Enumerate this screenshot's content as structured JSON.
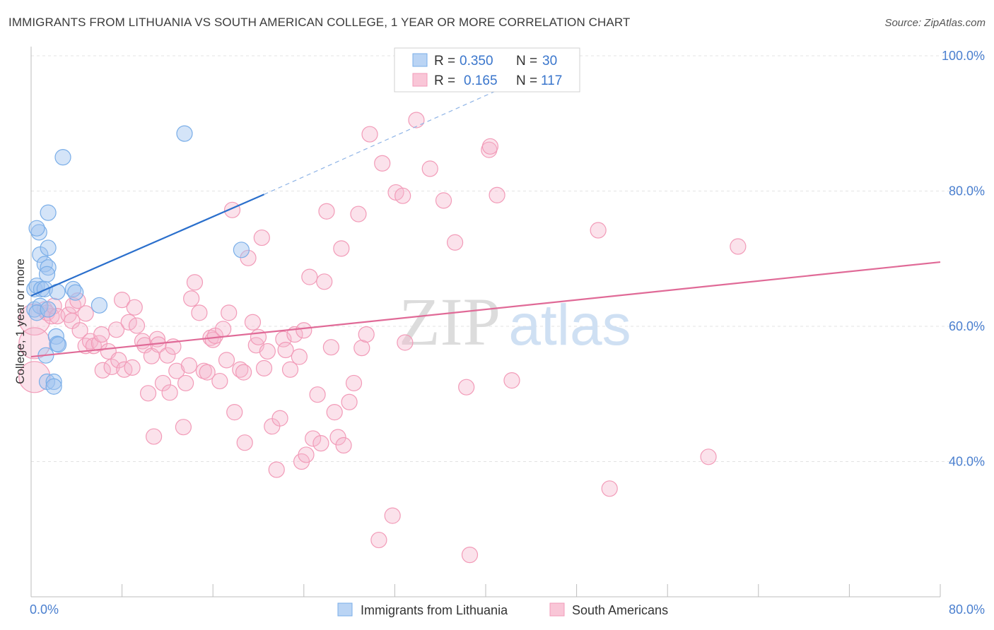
{
  "title": "IMMIGRANTS FROM LITHUANIA VS SOUTH AMERICAN COLLEGE, 1 YEAR OR MORE CORRELATION CHART",
  "source": "Source: ZipAtlas.com",
  "watermark": {
    "zip": "ZIP",
    "atlas": "atlas"
  },
  "legend": {
    "series1": {
      "r_label": "R =",
      "r_value": "0.350",
      "n_label": "N =",
      "n_value": "30"
    },
    "series2": {
      "r_label": "R =",
      "r_value": "0.165",
      "n_label": "N =",
      "n_value": "117"
    }
  },
  "chart_data": {
    "type": "scatter",
    "title": "IMMIGRANTS FROM LITHUANIA VS SOUTH AMERICAN COLLEGE, 1 YEAR OR MORE CORRELATION CHART",
    "xlabel": "",
    "ylabel": "College, 1 year or more",
    "xlim": [
      0,
      80
    ],
    "ylim": [
      20,
      100
    ],
    "x_tick_labels": [
      "0.0%",
      "80.0%"
    ],
    "y_tick_labels": [
      "100.0%",
      "80.0%",
      "60.0%",
      "40.0%"
    ],
    "y_ticks": [
      100,
      80,
      60,
      40
    ],
    "grid": true,
    "legend_position": "top-center",
    "series": [
      {
        "name": "Immigrants from Lithuania",
        "color": "#7aaee8",
        "trend_color": "#2a6fcc",
        "trend": {
          "x0": 0,
          "y0": 64.5,
          "x1": 20.5,
          "y1": 79.5,
          "dash_to_x": 44.5,
          "dash_to_y": 97.5
        },
        "points": [
          [
            0.3,
            65.5
          ],
          [
            0.5,
            66
          ],
          [
            0.3,
            62.5
          ],
          [
            0.8,
            63
          ],
          [
            0.5,
            62
          ],
          [
            0.9,
            65.5
          ],
          [
            1.2,
            65.5
          ],
          [
            0.7,
            73.9
          ],
          [
            0.5,
            74.5
          ],
          [
            0.8,
            70.6
          ],
          [
            1.2,
            69.2
          ],
          [
            1.5,
            68.7
          ],
          [
            1.4,
            67.7
          ],
          [
            1.5,
            71.6
          ],
          [
            1.5,
            76.8
          ],
          [
            2.8,
            85
          ],
          [
            2.3,
            65.1
          ],
          [
            3.7,
            65.5
          ],
          [
            3.9,
            65
          ],
          [
            6,
            63.1
          ],
          [
            1.3,
            55.7
          ],
          [
            2.2,
            58.5
          ],
          [
            2.3,
            57.4
          ],
          [
            2.4,
            57.3
          ],
          [
            1.4,
            51.8
          ],
          [
            2,
            51.8
          ],
          [
            2,
            51.1
          ],
          [
            13.5,
            88.5
          ],
          [
            18.5,
            71.3
          ],
          [
            1.5,
            62.5
          ]
        ],
        "sizes": [
          11,
          11,
          11,
          11,
          11,
          11,
          11,
          11,
          11,
          11,
          11,
          11,
          11,
          11,
          11,
          11,
          11,
          11,
          11,
          11,
          11,
          11,
          11,
          11,
          11,
          11,
          11,
          11,
          11,
          11
        ]
      },
      {
        "name": "South Americans",
        "color": "#f29bb8",
        "trend_color": "#e06a97",
        "trend": {
          "x0": 0,
          "y0": 55.5,
          "x1": 80,
          "y1": 69.5
        },
        "points": [
          [
            0.3,
            61
          ],
          [
            0.3,
            57.5
          ],
          [
            0.3,
            52.5
          ],
          [
            1.2,
            62.5
          ],
          [
            1.4,
            62
          ],
          [
            1.8,
            61.5
          ],
          [
            2,
            63
          ],
          [
            2.3,
            61.5
          ],
          [
            3.3,
            61.7
          ],
          [
            3.7,
            63.1
          ],
          [
            3.6,
            60.8
          ],
          [
            4.1,
            63.8
          ],
          [
            4.8,
            61.9
          ],
          [
            4.3,
            59.4
          ],
          [
            4.8,
            57.1
          ],
          [
            5.2,
            57.8
          ],
          [
            5.5,
            57.1
          ],
          [
            6,
            57.5
          ],
          [
            6.2,
            58.8
          ],
          [
            6.3,
            53.5
          ],
          [
            6.8,
            56.3
          ],
          [
            7.1,
            54
          ],
          [
            7.5,
            59.5
          ],
          [
            7.7,
            55
          ],
          [
            8,
            63.9
          ],
          [
            8.2,
            53.6
          ],
          [
            8.6,
            60.6
          ],
          [
            8.9,
            53.9
          ],
          [
            9.1,
            62.8
          ],
          [
            9.3,
            60.1
          ],
          [
            9.8,
            57.8
          ],
          [
            10,
            57.2
          ],
          [
            10.3,
            50.1
          ],
          [
            10.6,
            55.6
          ],
          [
            10.8,
            43.7
          ],
          [
            11.1,
            58.1
          ],
          [
            11.2,
            57.3
          ],
          [
            11.6,
            51.6
          ],
          [
            12,
            55.7
          ],
          [
            12.2,
            50.2
          ],
          [
            12.5,
            57
          ],
          [
            12.8,
            53.4
          ],
          [
            13.4,
            45.1
          ],
          [
            13.6,
            51.6
          ],
          [
            13.9,
            54.2
          ],
          [
            14.1,
            64.1
          ],
          [
            14.4,
            66.5
          ],
          [
            14.8,
            62
          ],
          [
            15.2,
            53.4
          ],
          [
            15.5,
            53.2
          ],
          [
            15.8,
            58.3
          ],
          [
            16,
            58
          ],
          [
            16.2,
            58.6
          ],
          [
            16.6,
            51.9
          ],
          [
            16.9,
            59.6
          ],
          [
            17.2,
            55
          ],
          [
            17.4,
            62
          ],
          [
            17.7,
            77.2
          ],
          [
            17.9,
            47.3
          ],
          [
            18.4,
            53.6
          ],
          [
            18.7,
            53.2
          ],
          [
            18.8,
            42.8
          ],
          [
            19.1,
            70.1
          ],
          [
            19.5,
            60.6
          ],
          [
            19.8,
            57.2
          ],
          [
            20,
            58.4
          ],
          [
            20.3,
            73.1
          ],
          [
            20.5,
            53.8
          ],
          [
            20.8,
            56.3
          ],
          [
            21.2,
            45.2
          ],
          [
            21.6,
            38.8
          ],
          [
            21.9,
            46.4
          ],
          [
            22.2,
            58.1
          ],
          [
            22.4,
            56.5
          ],
          [
            22.8,
            53.6
          ],
          [
            23.2,
            58.8
          ],
          [
            23.6,
            55.5
          ],
          [
            23.8,
            40
          ],
          [
            24,
            59.4
          ],
          [
            24.2,
            41
          ],
          [
            24.5,
            67.3
          ],
          [
            24.8,
            43.4
          ],
          [
            25.2,
            49.9
          ],
          [
            25.5,
            42.7
          ],
          [
            25.8,
            66.6
          ],
          [
            26,
            77
          ],
          [
            26.4,
            56.9
          ],
          [
            26.7,
            47.3
          ],
          [
            27,
            43.6
          ],
          [
            27.3,
            71.5
          ],
          [
            27.5,
            42.4
          ],
          [
            28,
            48.8
          ],
          [
            28.4,
            51.6
          ],
          [
            28.8,
            76.6
          ],
          [
            29.1,
            56.8
          ],
          [
            29.5,
            58.8
          ],
          [
            29.8,
            88.4
          ],
          [
            30.6,
            28.4
          ],
          [
            30.9,
            84.1
          ],
          [
            31.8,
            32
          ],
          [
            32.1,
            79.8
          ],
          [
            32.7,
            79.3
          ],
          [
            32.9,
            57.6
          ],
          [
            33.9,
            90.5
          ],
          [
            35.1,
            83.3
          ],
          [
            36.3,
            78.6
          ],
          [
            37.3,
            72.4
          ],
          [
            38.3,
            51
          ],
          [
            38.6,
            26.2
          ],
          [
            40.3,
            86.1
          ],
          [
            40.4,
            86.6
          ],
          [
            41,
            79.4
          ],
          [
            42.3,
            52
          ],
          [
            49.9,
            74.2
          ],
          [
            50.9,
            36
          ],
          [
            59.6,
            40.7
          ],
          [
            62.2,
            71.8
          ]
        ],
        "sizes": [
          22,
          22,
          22,
          11,
          11,
          11,
          11,
          11,
          11,
          11,
          11,
          11,
          11,
          11,
          11,
          11,
          11,
          11,
          11,
          11,
          11,
          11,
          11,
          11,
          11,
          11,
          11,
          11,
          11,
          11,
          11,
          11,
          11,
          11,
          11,
          11,
          11,
          11,
          11,
          11,
          11,
          11,
          11,
          11,
          11,
          11,
          11,
          11,
          11,
          11,
          11,
          11,
          11,
          11,
          11,
          11,
          11,
          11,
          11,
          11,
          11,
          11,
          11,
          11,
          11,
          11,
          11,
          11,
          11,
          11,
          11,
          11,
          11,
          11,
          11,
          11,
          11,
          11,
          11,
          11,
          11,
          11,
          11,
          11,
          11,
          11,
          11,
          11,
          11,
          11,
          11,
          11,
          11,
          11,
          11,
          11,
          11,
          11,
          11,
          11,
          11,
          11,
          11,
          11,
          11,
          11,
          11,
          11,
          11,
          11,
          11,
          11,
          11,
          11,
          11,
          11,
          11
        ]
      }
    ]
  }
}
